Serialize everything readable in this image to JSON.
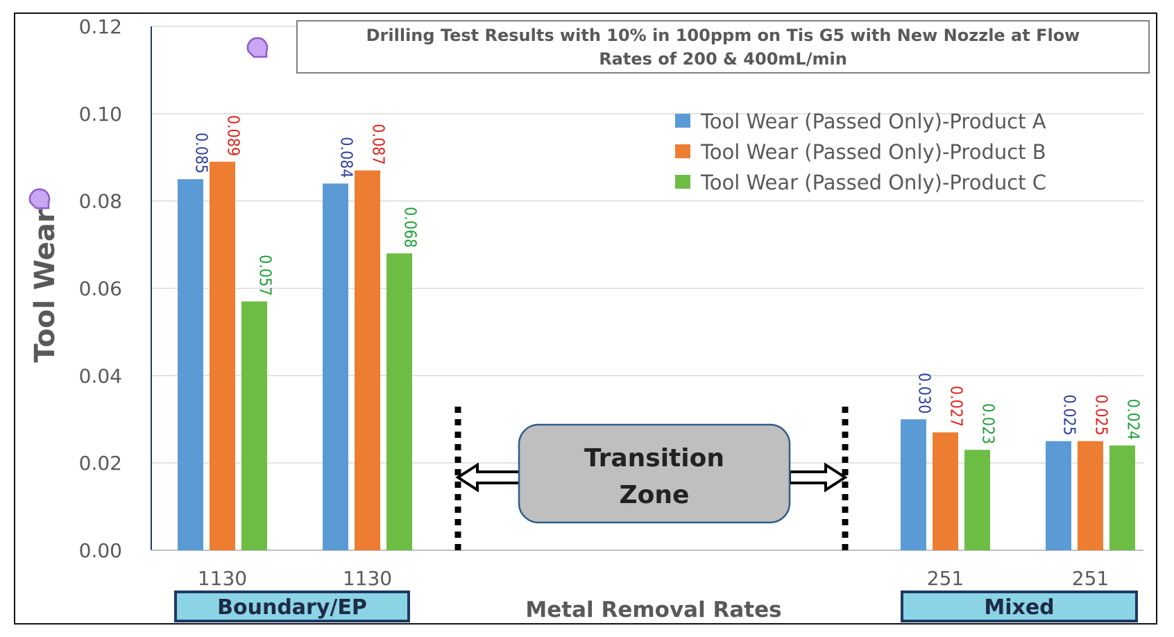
{
  "chart_data": {
    "type": "bar",
    "title": "Drilling Test Results with 10% in 100ppm on Tis G5 with New Nozzle at Flow Rates of 200 & 400mL/min",
    "title_lines": [
      "Drilling Test Results with 10% in 100ppm on Tis G5 with New Nozzle at Flow",
      "Rates of 200 & 400mL/min"
    ],
    "xlabel": "Metal Removal Rates",
    "ylabel": "Tool Wear",
    "ylim": [
      0,
      0.12
    ],
    "yticks": [
      "0.00",
      "0.02",
      "0.04",
      "0.06",
      "0.08",
      "0.10",
      "0.12"
    ],
    "grid": true,
    "legend_position": "top-right",
    "categories": [
      "1130",
      "1130",
      "251",
      "251"
    ],
    "series": [
      {
        "name": "Tool Wear (Passed Only)-Product A",
        "color": "#5B9BD5",
        "label_color": "#2E3F9B",
        "values": [
          0.085,
          0.084,
          0.03,
          0.025
        ],
        "labels": [
          "0.085",
          "0.084",
          "0.030",
          "0.025"
        ]
      },
      {
        "name": "Tool Wear (Passed Only)-Product B",
        "color": "#ED7D31",
        "label_color": "#E0201B",
        "values": [
          0.089,
          0.087,
          0.027,
          0.025
        ],
        "labels": [
          "0.089",
          "0.087",
          "0.027",
          "0.025"
        ]
      },
      {
        "name": "Tool Wear (Passed Only)-Product C",
        "color": "#6DBD45",
        "label_color": "#1E9E3A",
        "values": [
          0.057,
          0.068,
          0.023,
          0.024
        ],
        "labels": [
          "0.057",
          "0.068",
          "0.023",
          "0.024"
        ]
      }
    ],
    "annotations": {
      "transition_zone": [
        "Transition",
        "Zone"
      ],
      "regime_left": "Boundary/EP",
      "regime_right": "Mixed"
    }
  }
}
